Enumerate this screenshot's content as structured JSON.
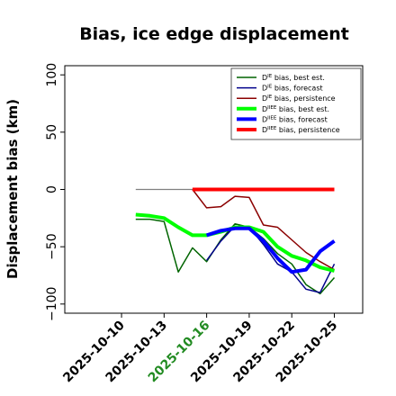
{
  "chart_data": {
    "type": "line",
    "title": "Bias, ice edge displacement",
    "ylabel": "Displacement bias (km)",
    "xlabel": "",
    "ylim": [
      -108,
      108
    ],
    "xlim": [
      "2025-10-06",
      "2025-10-27"
    ],
    "yticks": [
      100,
      50,
      0,
      -50,
      -100
    ],
    "xticks": [
      {
        "date": "2025-10-10",
        "label": "2025-10-10",
        "color": "#000000"
      },
      {
        "date": "2025-10-13",
        "label": "2025-10-13",
        "color": "#000000"
      },
      {
        "date": "2025-10-16",
        "label": "2025-10-16",
        "color": "#228b22"
      },
      {
        "date": "2025-10-19",
        "label": "2025-10-19",
        "color": "#000000"
      },
      {
        "date": "2025-10-22",
        "label": "2025-10-22",
        "color": "#000000"
      },
      {
        "date": "2025-10-25",
        "label": "2025-10-25",
        "color": "#000000"
      }
    ],
    "grid": false,
    "legend_position": "top-right",
    "reference_line": {
      "y": 0,
      "x_start": "2025-10-11",
      "x_end": "2025-10-25",
      "color": "#808080"
    },
    "series": [
      {
        "name": "bias, best est.",
        "name_prefix": "D",
        "name_sup": "IE",
        "color": "#006400",
        "width": 1.5,
        "x": [
          "2025-10-11",
          "2025-10-12",
          "2025-10-13",
          "2025-10-14",
          "2025-10-15",
          "2025-10-16",
          "2025-10-17",
          "2025-10-18",
          "2025-10-19",
          "2025-10-20",
          "2025-10-21",
          "2025-10-22",
          "2025-10-23",
          "2025-10-24",
          "2025-10-25"
        ],
        "y": [
          -26,
          -26,
          -28,
          -72,
          -51,
          -63,
          -44,
          -30,
          -33,
          -43,
          -56,
          -65,
          -83,
          -91,
          -77
        ]
      },
      {
        "name": "bias, forecast",
        "name_prefix": "D",
        "name_sup": "IE",
        "color": "#00008b",
        "width": 1.5,
        "x": [
          "2025-10-16",
          "2025-10-17",
          "2025-10-18",
          "2025-10-19",
          "2025-10-20",
          "2025-10-21",
          "2025-10-22",
          "2025-10-23",
          "2025-10-24",
          "2025-10-25"
        ],
        "y": [
          -62,
          -45,
          -32,
          -33,
          -48,
          -65,
          -72,
          -87,
          -90,
          -65
        ]
      },
      {
        "name": "bias, persistence",
        "name_prefix": "D",
        "name_sup": "IE",
        "color": "#8b0000",
        "width": 1.5,
        "x": [
          "2025-10-15",
          "2025-10-16",
          "2025-10-17",
          "2025-10-18",
          "2025-10-19",
          "2025-10-20",
          "2025-10-21",
          "2025-10-22",
          "2025-10-23",
          "2025-10-24",
          "2025-10-25"
        ],
        "y": [
          0,
          -16,
          -15,
          -6,
          -7,
          -31,
          -33,
          -44,
          -55,
          -63,
          -70
        ]
      },
      {
        "name": "bias, best est.",
        "name_prefix": "D",
        "name_sup": "IIEE",
        "color": "#00ff00",
        "width": 4,
        "x": [
          "2025-10-11",
          "2025-10-12",
          "2025-10-13",
          "2025-10-14",
          "2025-10-15",
          "2025-10-16",
          "2025-10-17",
          "2025-10-18",
          "2025-10-19",
          "2025-10-20",
          "2025-10-21",
          "2025-10-22",
          "2025-10-23",
          "2025-10-24",
          "2025-10-25"
        ],
        "y": [
          -22,
          -23,
          -25,
          -33,
          -40,
          -40,
          -37,
          -33,
          -33,
          -37,
          -50,
          -58,
          -62,
          -68,
          -71
        ]
      },
      {
        "name": "bias, forecast",
        "name_prefix": "D",
        "name_sup": "IIEE",
        "color": "#0000ff",
        "width": 4,
        "x": [
          "2025-10-16",
          "2025-10-17",
          "2025-10-18",
          "2025-10-19",
          "2025-10-20",
          "2025-10-21",
          "2025-10-22",
          "2025-10-23",
          "2025-10-24",
          "2025-10-25"
        ],
        "y": [
          -40,
          -36,
          -34,
          -34,
          -45,
          -60,
          -72,
          -70,
          -54,
          -45
        ]
      },
      {
        "name": "bias, persistence",
        "name_prefix": "D",
        "name_sup": "IIEE",
        "color": "#ff0000",
        "width": 4,
        "x": [
          "2025-10-15",
          "2025-10-16",
          "2025-10-17",
          "2025-10-18",
          "2025-10-19",
          "2025-10-20",
          "2025-10-21",
          "2025-10-22",
          "2025-10-23",
          "2025-10-24",
          "2025-10-25"
        ],
        "y": [
          0,
          0,
          0,
          0,
          0,
          0,
          0,
          0,
          0,
          0,
          0
        ]
      }
    ]
  }
}
